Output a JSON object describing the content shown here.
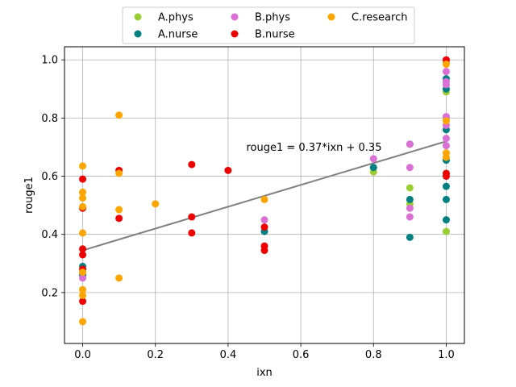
{
  "chart_data": {
    "type": "scatter",
    "xlabel": "ixn",
    "ylabel": "rouge1",
    "xlim": [
      -0.05,
      1.05
    ],
    "ylim": [
      0.025,
      1.045
    ],
    "xticks": [
      0.0,
      0.2,
      0.4,
      0.6,
      0.8,
      1.0
    ],
    "yticks": [
      0.2,
      0.4,
      0.6,
      0.8,
      1.0
    ],
    "xtick_labels": [
      "0.0",
      "0.2",
      "0.4",
      "0.6",
      "0.8",
      "1.0"
    ],
    "ytick_labels": [
      "0.2",
      "0.4",
      "0.6",
      "0.8",
      "1.0"
    ],
    "grid": true,
    "legend_position": "top-center",
    "series": [
      {
        "name": "A.phys",
        "color": "#9acd32",
        "points": [
          [
            0.8,
            0.615
          ],
          [
            0.9,
            0.56
          ],
          [
            0.9,
            0.505
          ],
          [
            1.0,
            0.89
          ],
          [
            1.0,
            0.99
          ],
          [
            1.0,
            0.41
          ],
          [
            1.0,
            0.8
          ]
        ]
      },
      {
        "name": "A.nurse",
        "color": "#008080",
        "points": [
          [
            0.0,
            0.29
          ],
          [
            0.0,
            0.26
          ],
          [
            0.5,
            0.41
          ],
          [
            0.8,
            0.63
          ],
          [
            0.9,
            0.71
          ],
          [
            0.9,
            0.52
          ],
          [
            0.9,
            0.39
          ],
          [
            1.0,
            0.935
          ],
          [
            1.0,
            0.9
          ],
          [
            1.0,
            0.76
          ],
          [
            1.0,
            0.655
          ],
          [
            1.0,
            0.565
          ],
          [
            1.0,
            0.52
          ],
          [
            1.0,
            0.45
          ]
        ]
      },
      {
        "name": "B.phys",
        "color": "#da70d6",
        "points": [
          [
            0.0,
            0.25
          ],
          [
            0.5,
            0.45
          ],
          [
            0.8,
            0.66
          ],
          [
            0.9,
            0.71
          ],
          [
            0.9,
            0.63
          ],
          [
            0.9,
            0.49
          ],
          [
            0.9,
            0.46
          ],
          [
            1.0,
            0.96
          ],
          [
            1.0,
            0.925
          ],
          [
            1.0,
            0.915
          ],
          [
            1.0,
            0.805
          ],
          [
            1.0,
            0.775
          ],
          [
            1.0,
            0.73
          ],
          [
            1.0,
            0.705
          ]
        ]
      },
      {
        "name": "B.nurse",
        "color": "#ee0000",
        "points": [
          [
            0.0,
            0.59
          ],
          [
            0.0,
            0.49
          ],
          [
            0.0,
            0.35
          ],
          [
            0.0,
            0.33
          ],
          [
            0.0,
            0.28
          ],
          [
            0.0,
            0.17
          ],
          [
            0.1,
            0.62
          ],
          [
            0.1,
            0.455
          ],
          [
            0.3,
            0.64
          ],
          [
            0.3,
            0.46
          ],
          [
            0.3,
            0.405
          ],
          [
            0.4,
            0.62
          ],
          [
            0.5,
            0.425
          ],
          [
            0.5,
            0.36
          ],
          [
            0.5,
            0.345
          ],
          [
            1.0,
            1.0
          ],
          [
            1.0,
            0.61
          ],
          [
            1.0,
            0.6
          ]
        ]
      },
      {
        "name": "C.research",
        "color": "#ffa500",
        "points": [
          [
            0.0,
            0.635
          ],
          [
            0.0,
            0.545
          ],
          [
            0.0,
            0.525
          ],
          [
            0.0,
            0.495
          ],
          [
            0.0,
            0.405
          ],
          [
            0.0,
            0.27
          ],
          [
            0.0,
            0.21
          ],
          [
            0.0,
            0.19
          ],
          [
            0.0,
            0.1
          ],
          [
            0.1,
            0.81
          ],
          [
            0.1,
            0.61
          ],
          [
            0.1,
            0.485
          ],
          [
            0.1,
            0.25
          ],
          [
            0.2,
            0.505
          ],
          [
            0.5,
            0.52
          ],
          [
            1.0,
            0.985
          ],
          [
            1.0,
            0.79
          ],
          [
            1.0,
            0.68
          ],
          [
            1.0,
            0.665
          ]
        ]
      }
    ],
    "fit_line": {
      "color": "#808080",
      "x": [
        0.0,
        1.0
      ],
      "y": [
        0.345,
        0.72
      ]
    },
    "annotation": {
      "text": "rouge1 = 0.37*ixn + 0.35",
      "x": 0.45,
      "y": 0.7
    }
  }
}
